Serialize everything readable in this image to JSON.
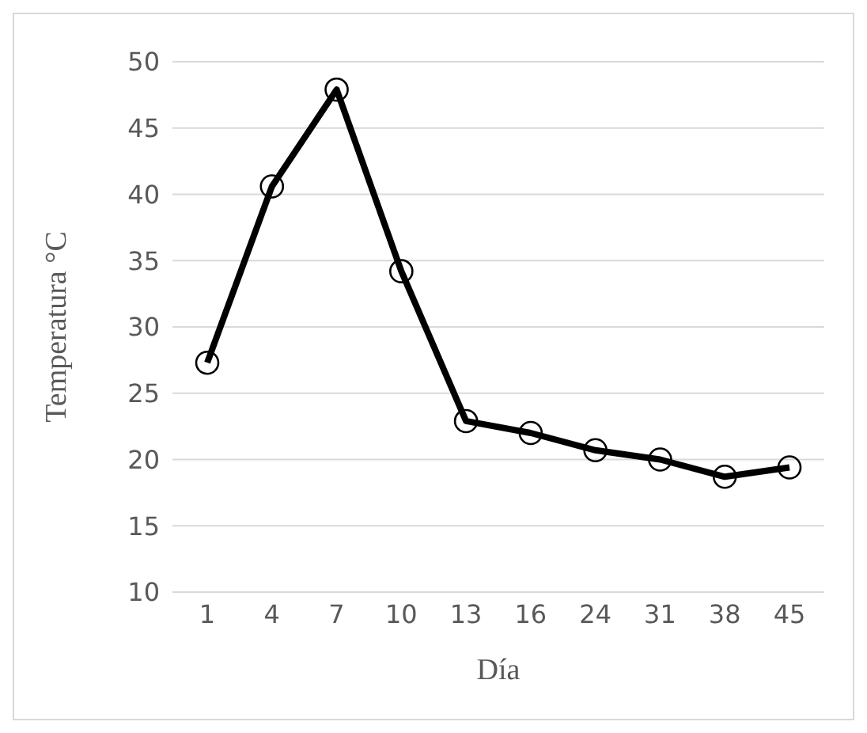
{
  "chart_data": {
    "type": "line",
    "xlabel": "Día",
    "ylabel": "Temperatura  °C",
    "categories": [
      "1",
      "4",
      "7",
      "10",
      "13",
      "16",
      "24",
      "31",
      "38",
      "45"
    ],
    "series": [
      {
        "color": "#000000",
        "values": [
          27.3,
          40.6,
          47.9,
          34.2,
          22.9,
          22.0,
          20.7,
          20.0,
          18.7,
          19.4
        ]
      }
    ],
    "ylim": [
      10,
      50
    ],
    "yticks": [
      10,
      15,
      20,
      25,
      30,
      35,
      40,
      45,
      50
    ],
    "grid": "y",
    "marker": "circle",
    "line_style": "solid",
    "legend": false
  }
}
